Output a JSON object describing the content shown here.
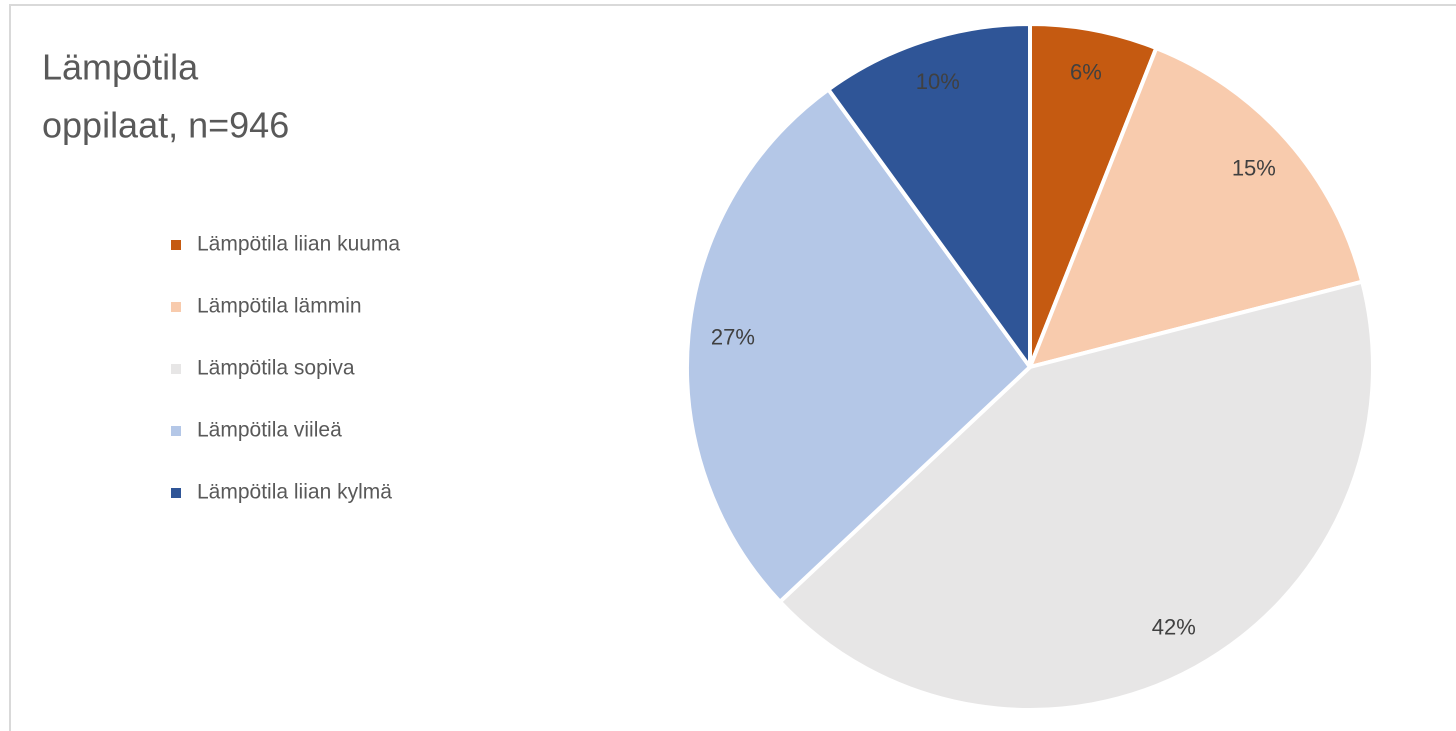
{
  "chart_data": {
    "type": "pie",
    "title": "Lämpötila",
    "subtitle": "oppilaat, n=946",
    "categories": [
      "Lämpötila liian kuuma",
      "Lämpötila lämmin",
      "Lämpötila sopiva",
      "Lämpötila viileä",
      "Lämpötila liian kylmä"
    ],
    "values": [
      6,
      15,
      42,
      27,
      10
    ],
    "value_labels": [
      "6%",
      "15%",
      "42%",
      "27%",
      "10%"
    ],
    "colors": [
      "#c55a11",
      "#f8cbad",
      "#e7e6e6",
      "#b4c7e7",
      "#2f5597"
    ],
    "legend": "left"
  }
}
